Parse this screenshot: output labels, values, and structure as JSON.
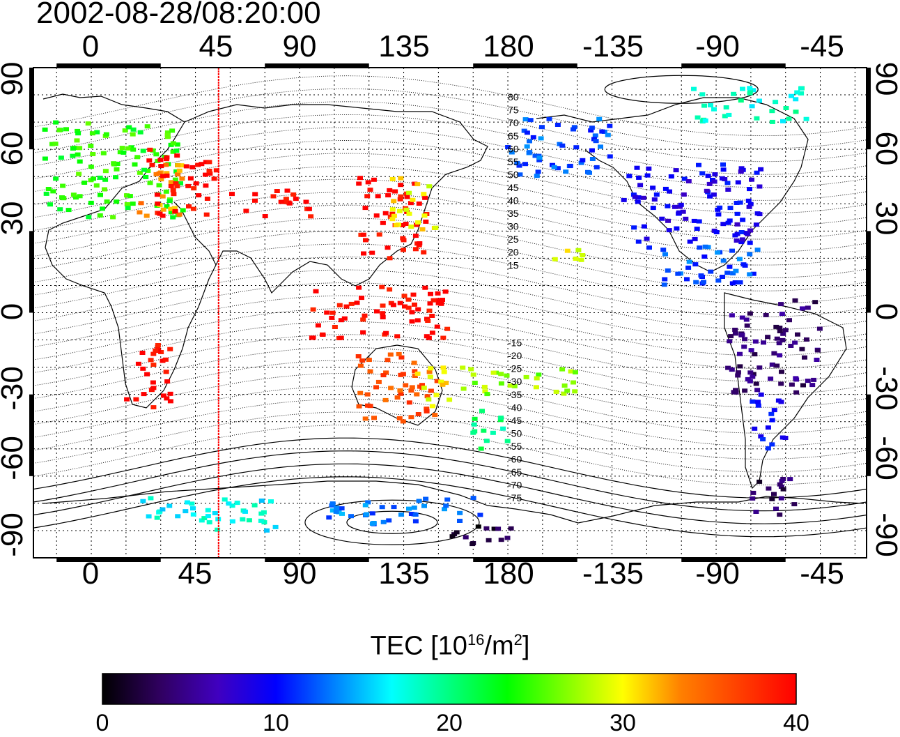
{
  "timestamp": "2002-08-28/08:20:00",
  "map": {
    "x_ticks_top": [
      "0",
      "45",
      "90",
      "135",
      "180",
      "-135",
      "-90",
      "-45"
    ],
    "x_ticks_bottom": [
      "0",
      "45",
      "90",
      "135",
      "180",
      "-135",
      "-90",
      "-45"
    ],
    "y_ticks_left": [
      "90",
      "60",
      "30",
      "0",
      "-30",
      "-60",
      "-90"
    ],
    "y_ticks_right": [
      "90",
      "60",
      "30",
      "0",
      "-30",
      "-60",
      "-90"
    ],
    "x_range_deg": [
      -25,
      335
    ],
    "y_range_deg": [
      -90,
      90
    ],
    "grid": "dotted",
    "terminator_longitude": 55,
    "terminator_color": "#ff0000",
    "contour_labels": [
      "80",
      "75",
      "70",
      "65",
      "60",
      "55",
      "50",
      "45",
      "40",
      "35",
      "30",
      "25",
      "20",
      "15",
      "-15",
      "-20",
      "-25",
      "-30",
      "-35",
      "-40",
      "-45",
      "-50",
      "-55",
      "-60",
      "-65",
      "-70",
      "-75"
    ]
  },
  "colorbar": {
    "title_main": "TEC  [10",
    "title_exp": "16",
    "title_mid": "/m",
    "title_exp2": "2",
    "title_end": "]",
    "ticks": [
      "0",
      "10",
      "20",
      "30",
      "40"
    ],
    "range": [
      0,
      40
    ],
    "colors": [
      "#000000",
      "#300060",
      "#4000c0",
      "#0000ff",
      "#0080ff",
      "#00ffff",
      "#00ff80",
      "#00ff00",
      "#80ff00",
      "#ffff00",
      "#ff8000",
      "#ff4000",
      "#ff0000"
    ]
  },
  "chart_data": {
    "type": "heatmap",
    "title": "2002-08-28/08:20:00",
    "xlabel": "",
    "ylabel": "",
    "xlim": [
      -25,
      335
    ],
    "ylim": [
      -90,
      90
    ],
    "value_label": "TEC [10^16/m^2]",
    "value_range": [
      0,
      40
    ],
    "regions": [
      {
        "lon": [
          -20,
          40
        ],
        "lat": [
          35,
          70
        ],
        "value": 24
      },
      {
        "lon": [
          20,
          40
        ],
        "lat": [
          35,
          55
        ],
        "value": 33
      },
      {
        "lon": [
          25,
          55
        ],
        "lat": [
          35,
          60
        ],
        "value": 40
      },
      {
        "lon": [
          60,
          95
        ],
        "lat": [
          35,
          45
        ],
        "value": 40
      },
      {
        "lon": [
          115,
          145
        ],
        "lat": [
          20,
          50
        ],
        "value": 40
      },
      {
        "lon": [
          130,
          150
        ],
        "lat": [
          30,
          50
        ],
        "value": 30
      },
      {
        "lon": [
          95,
          155
        ],
        "lat": [
          -10,
          10
        ],
        "value": 40
      },
      {
        "lon": [
          115,
          150
        ],
        "lat": [
          -40,
          -15
        ],
        "value": 36
      },
      {
        "lon": [
          140,
          155
        ],
        "lat": [
          -35,
          -20
        ],
        "value": 30
      },
      {
        "lon": [
          15,
          35
        ],
        "lat": [
          -35,
          -10
        ],
        "value": 40
      },
      {
        "lon": [
          165,
          180
        ],
        "lat": [
          -50,
          -35
        ],
        "value": 20
      },
      {
        "lon": [
          160,
          210
        ],
        "lat": [
          -30,
          -20
        ],
        "value": 27
      },
      {
        "lon": [
          200,
          215
        ],
        "lat": [
          18,
          25
        ],
        "value": 30
      },
      {
        "lon": [
          180,
          225
        ],
        "lat": [
          50,
          72
        ],
        "value": 12
      },
      {
        "lon": [
          230,
          290
        ],
        "lat": [
          25,
          55
        ],
        "value": 9
      },
      {
        "lon": [
          240,
          290
        ],
        "lat": [
          10,
          25
        ],
        "value": 12
      },
      {
        "lon": [
          275,
          315
        ],
        "lat": [
          -30,
          5
        ],
        "value": 4
      },
      {
        "lon": [
          285,
          300
        ],
        "lat": [
          -50,
          -30
        ],
        "value": 10
      },
      {
        "lon": [
          285,
          305
        ],
        "lat": [
          -75,
          -60
        ],
        "value": 3
      },
      {
        "lon": [
          20,
          80
        ],
        "lat": [
          -80,
          -68
        ],
        "value": 17
      },
      {
        "lon": [
          100,
          170
        ],
        "lat": [
          -78,
          -68
        ],
        "value": 13
      },
      {
        "lon": [
          150,
          185
        ],
        "lat": [
          -85,
          -78
        ],
        "value": 2
      },
      {
        "lon": [
          260,
          310
        ],
        "lat": [
          70,
          83
        ],
        "value": 18
      }
    ]
  }
}
